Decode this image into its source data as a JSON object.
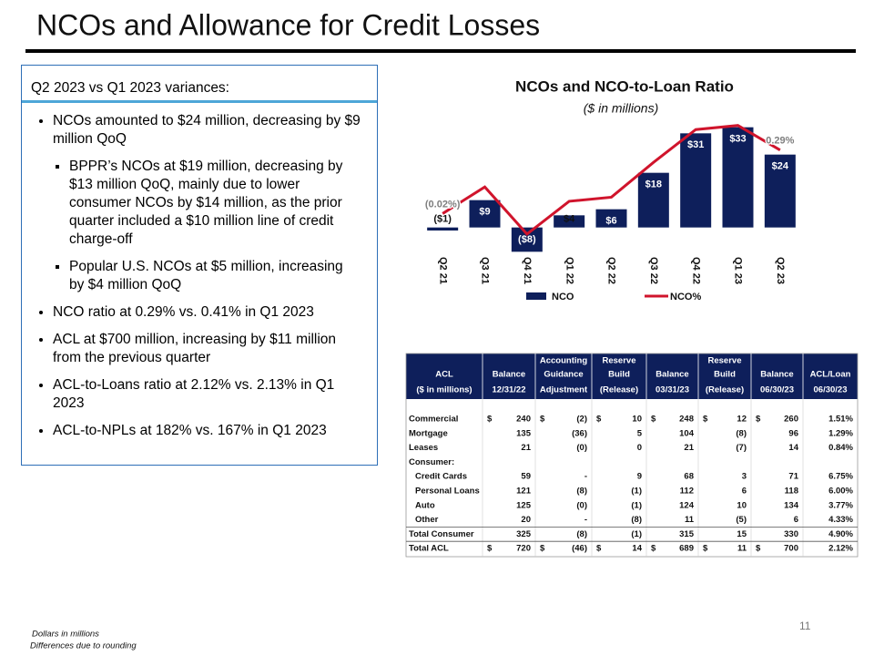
{
  "slide_title": "NCOs and Allowance for Credit Losses",
  "textbox": {
    "header": "Q2 2023 vs Q1 2023 variances:",
    "items": [
      {
        "text": "NCOs amounted to $24 million, decreasing by $9 million QoQ",
        "sub": [
          "BPPR’s NCOs at $19 million, decreasing by $13 million QoQ, mainly due to lower consumer NCOs by $14 million, as the prior quarter included a $10 million line of credit charge-off",
          "Popular U.S. NCOs at $5 million, increasing by $4 million QoQ"
        ]
      },
      {
        "text": "NCO ratio at 0.29% vs. 0.41% in Q1 2023"
      },
      {
        "text": "ACL at $700 million, increasing by $11 million from the previous quarter"
      },
      {
        "text": "ACL-to-Loans ratio at 2.12% vs. 2.13% in Q1 2023"
      },
      {
        "text": "ACL-to-NPLs at 182% vs. 167% in Q1 2023"
      }
    ]
  },
  "chart_data": {
    "type": "bar_line",
    "title": "NCOs and NCO-to-Loan Ratio",
    "subtitle": "($ in millions)",
    "categories": [
      "Q2 21",
      "Q3 21",
      "Q4 21",
      "Q1 22",
      "Q2 22",
      "Q3 22",
      "Q4 22",
      "Q1 23",
      "Q2 23"
    ],
    "series": [
      {
        "name": "NCO",
        "type": "bar",
        "color": "#0e1f5b",
        "values": [
          -1,
          9,
          -8,
          4,
          6,
          18,
          31,
          33,
          24
        ],
        "value_labels": [
          "($1)",
          "$9",
          "($8)",
          "$4",
          "$6",
          "$18",
          "$31",
          "$33",
          "$24"
        ]
      },
      {
        "name": "NCO%",
        "type": "line",
        "axis": "y2",
        "color": "#d0142c",
        "values": [
          -0.02,
          0.11,
          -0.12,
          0.04,
          0.06,
          0.23,
          0.39,
          0.41,
          0.29
        ],
        "value_labels": [
          "(0.02%)",
          null,
          null,
          null,
          null,
          null,
          null,
          null,
          "0.29%"
        ]
      }
    ],
    "ylim": [
      -10,
      35
    ],
    "y2lim": [
      -0.236,
      0.431
    ],
    "legend": "bottom"
  },
  "table": {
    "currency": "$",
    "header": [
      [
        "ACL",
        "($ in millions)"
      ],
      [
        "Balance",
        "12/31/22"
      ],
      [
        "Accounting",
        "Guidance",
        "Adjustment"
      ],
      [
        "Reserve",
        "Build",
        "(Release)"
      ],
      [
        "Balance",
        "03/31/23"
      ],
      [
        "Reserve",
        "Build",
        "(Release)"
      ],
      [
        "Balance",
        "06/30/23"
      ],
      [
        "ACL/Loan",
        "06/30/23"
      ]
    ],
    "rows": [
      {
        "label": "Commercial",
        "currency_row": true,
        "cells": [
          "240",
          "(2)",
          "10",
          "248",
          "12",
          "260",
          "1.51%"
        ]
      },
      {
        "label": "Mortgage",
        "cells": [
          "135",
          "(36)",
          "5",
          "104",
          "(8)",
          "96",
          "1.29%"
        ]
      },
      {
        "label": "Leases",
        "cells": [
          "21",
          "(0)",
          "0",
          "21",
          "(7)",
          "14",
          "0.84%"
        ]
      },
      {
        "label": "Consumer:"
      },
      {
        "label": "Credit Cards",
        "indent": true,
        "cells": [
          "59",
          "-",
          "9",
          "68",
          "3",
          "71",
          "6.75%"
        ]
      },
      {
        "label": "Personal Loans",
        "indent": true,
        "cells": [
          "121",
          "(8)",
          "(1)",
          "112",
          "6",
          "118",
          "6.00%"
        ]
      },
      {
        "label": "Auto",
        "indent": true,
        "cells": [
          "125",
          "(0)",
          "(1)",
          "124",
          "10",
          "134",
          "3.77%"
        ]
      },
      {
        "label": "Other",
        "indent": true,
        "cells": [
          "20",
          "-",
          "(8)",
          "11",
          "(5)",
          "6",
          "4.33%"
        ]
      },
      {
        "label": "Total Consumer",
        "total": true,
        "cells": [
          "325",
          "(8)",
          "(1)",
          "315",
          "15",
          "330",
          "4.90%"
        ]
      },
      {
        "label": "Total ACL",
        "total": true,
        "currency_row": true,
        "cells": [
          "720",
          "(46)",
          "14",
          "689",
          "11",
          "700",
          "2.12%"
        ]
      }
    ]
  },
  "page_number": "11",
  "footnotes": [
    "Dollars in millions",
    "Differences due to rounding"
  ]
}
